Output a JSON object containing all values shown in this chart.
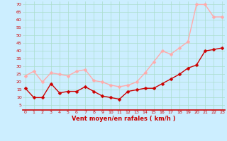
{
  "x": [
    0,
    1,
    2,
    3,
    4,
    5,
    6,
    7,
    8,
    9,
    10,
    11,
    12,
    13,
    14,
    15,
    16,
    17,
    18,
    19,
    20,
    21,
    22,
    23
  ],
  "wind_avg": [
    16,
    10,
    10,
    19,
    13,
    14,
    14,
    17,
    14,
    11,
    10,
    9,
    14,
    15,
    16,
    16,
    19,
    22,
    25,
    29,
    31,
    40,
    41,
    42
  ],
  "wind_gust": [
    24,
    27,
    20,
    26,
    25,
    24,
    27,
    28,
    21,
    20,
    18,
    17,
    18,
    20,
    26,
    33,
    40,
    38,
    42,
    46,
    70,
    70,
    62,
    62
  ],
  "bg_color": "#cceeff",
  "grid_color": "#aaddcc",
  "avg_color": "#cc0000",
  "gust_color": "#ffaaaa",
  "xlabel": "Vent moyen/en rafales ( km/h )",
  "xlabel_color": "#cc0000",
  "ylabel_ticks": [
    5,
    10,
    15,
    20,
    25,
    30,
    35,
    40,
    45,
    50,
    55,
    60,
    65,
    70
  ],
  "ylim": [
    2,
    72
  ],
  "xlim": [
    -0.3,
    23.3
  ],
  "markersize": 2.5,
  "linewidth": 1.0
}
